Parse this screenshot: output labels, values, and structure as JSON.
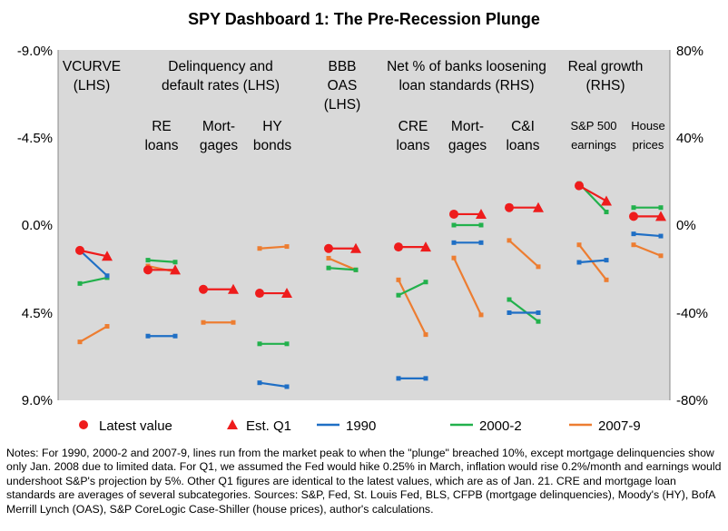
{
  "chart_data": {
    "type": "line",
    "title": "SPY Dashboard 1: The Pre-Recession Plunge",
    "lhs_axis": {
      "min": -9.0,
      "max": 9.0,
      "reversed": true,
      "ticks": [
        "-9.0%",
        "-4.5%",
        "0.0%",
        "4.5%",
        "9.0%"
      ]
    },
    "rhs_axis": {
      "min": -80,
      "max": 80,
      "ticks": [
        "80%",
        "40%",
        "0%",
        "-40%",
        "-80%"
      ]
    },
    "grid": false,
    "legend_position": "bottom",
    "colors": {
      "latest": "#ee1c1c",
      "s1990": "#1f6fc5",
      "s2000": "#22b14c",
      "s2007": "#ed7d31",
      "plot_bg": "#d9d9d9"
    },
    "headers": [
      {
        "lines": [
          "VCURVE",
          "(LHS)"
        ]
      },
      {
        "lines": [
          "Delinquency and",
          "default rates (LHS)"
        ]
      },
      {
        "lines": [
          "BBB",
          "OAS",
          "(LHS)"
        ]
      },
      {
        "lines": [
          "Net % of banks loosening",
          "loan standards (RHS)"
        ]
      },
      {
        "lines": [
          "Real growth",
          "(RHS)"
        ]
      }
    ],
    "subheaders": [
      {
        "lines": [
          "RE",
          "loans"
        ]
      },
      {
        "lines": [
          "Mort-",
          "gages"
        ]
      },
      {
        "lines": [
          "HY",
          "bonds"
        ]
      },
      {
        "lines": [
          "CRE",
          "loans"
        ]
      },
      {
        "lines": [
          "Mort-",
          "gages"
        ]
      },
      {
        "lines": [
          "C&I",
          "loans"
        ]
      },
      {
        "lines": [
          "S&P 500",
          "earnings"
        ]
      },
      {
        "lines": [
          "House",
          "prices"
        ]
      }
    ],
    "series_names": [
      "Latest value",
      "Est. Q1",
      "1990",
      "2000-2",
      "2007-9"
    ],
    "categories": [
      {
        "axis": "lhs",
        "latest": 1.3,
        "q1": 1.6,
        "s1990": [
          1.3,
          2.6
        ],
        "s2000": [
          3.0,
          2.7
        ],
        "s2007": [
          6.0,
          5.2
        ]
      },
      {
        "axis": "lhs",
        "latest": 2.3,
        "q1": 2.3,
        "s1990": [
          5.7,
          5.7
        ],
        "s2000": [
          1.8,
          1.9
        ],
        "s2007": [
          2.1,
          2.4
        ]
      },
      {
        "axis": "lhs",
        "latest": 3.3,
        "q1": 3.3,
        "s1990": null,
        "s2000": null,
        "s2007": [
          5.0,
          5.0
        ]
      },
      {
        "axis": "lhs",
        "latest": 3.5,
        "q1": 3.5,
        "s1990": [
          8.1,
          8.3
        ],
        "s2000": [
          6.1,
          6.1
        ],
        "s2007": [
          1.2,
          1.1
        ]
      },
      {
        "axis": "lhs",
        "latest": 1.2,
        "q1": 1.2,
        "s1990": null,
        "s2000": [
          2.2,
          2.3
        ],
        "s2007": [
          1.7,
          2.3
        ]
      },
      {
        "axis": "rhs",
        "latest": -10,
        "q1": -10,
        "s1990": [
          -70,
          -70
        ],
        "s2000": [
          -32,
          -26
        ],
        "s2007": [
          -25,
          -50
        ]
      },
      {
        "axis": "rhs",
        "latest": 5,
        "q1": 5,
        "s1990": [
          -8,
          -8
        ],
        "s2000": [
          0,
          0
        ],
        "s2007": [
          -15,
          -41
        ]
      },
      {
        "axis": "rhs",
        "latest": 8,
        "q1": 8,
        "s1990": [
          -40,
          -40
        ],
        "s2000": [
          -34,
          -44
        ],
        "s2007": [
          -7,
          -19
        ]
      },
      {
        "axis": "rhs",
        "latest": 18,
        "q1": 11,
        "s1990": [
          -17,
          -16
        ],
        "s2000": [
          19,
          6
        ],
        "s2007": [
          -9,
          -25
        ]
      },
      {
        "axis": "rhs",
        "latest": 4,
        "q1": 4,
        "s1990": [
          -4,
          -5
        ],
        "s2000": [
          8,
          8
        ],
        "s2007": [
          -9,
          -14
        ]
      }
    ]
  },
  "notes": "Notes: For 1990, 2000-2 and 2007-9, lines run from the market peak to when the \"plunge\" breached 10%, except mortgage delinquencies show only Jan. 2008 due to limited data. For Q1, we assumed the Fed would hike 0.25% in March, inflation would rise 0.2%/month and earnings would undershoot S&P's projection by 5%. Other Q1 figures are identical to the latest values, which are as of Jan. 21. CRE and mortgage loan standards are averages of several subcategories. Sources: S&P, Fed, St. Louis Fed, BLS, CFPB (mortgage delinquencies), Moody's (HY), BofA Merrill Lynch (OAS), S&P CoreLogic Case-Shiller (house prices), author's calculations."
}
